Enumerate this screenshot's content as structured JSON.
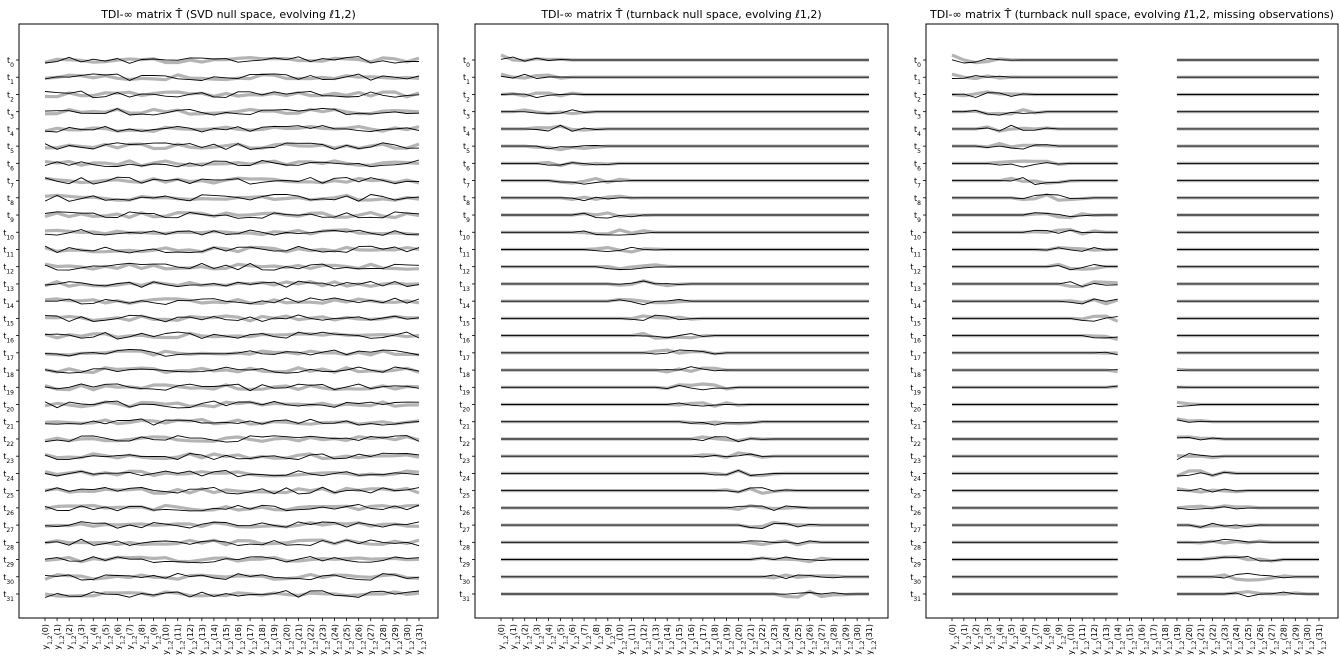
{
  "chart_data": [
    {
      "type": "line",
      "title": "TDI-∞ matrix T̂ (SVD null space, evolving ℓ1,2)",
      "row_labels": [
        "t0",
        "t1",
        "t2",
        "t3",
        "t4",
        "t5",
        "t6",
        "t7",
        "t8",
        "t9",
        "t10",
        "t11",
        "t12",
        "t13",
        "t14",
        "t15",
        "t16",
        "t17",
        "t18",
        "t19",
        "t20",
        "t21",
        "t22",
        "t23",
        "t24",
        "t25",
        "t26",
        "t27",
        "t28",
        "t29",
        "t30",
        "t31"
      ],
      "x_labels": [
        "y1,2(0)",
        "y1,2(1)",
        "y1,2(2)",
        "y1,2(3)",
        "y1,2(4)",
        "y1,2(5)",
        "y1,2(6)",
        "y1,2(7)",
        "y1,2(8)",
        "y1,2(9)",
        "y1,2(10)",
        "y1,2(11)",
        "y1,2(12)",
        "y1,2(13)",
        "y1,2(14)",
        "y1,2(15)",
        "y1,2(16)",
        "y1,2(17)",
        "y1,2(18)",
        "y1,2(19)",
        "y1,2(20)",
        "y1,2(21)",
        "y1,2(22)",
        "y1,2(23)",
        "y1,2(24)",
        "y1,2(25)",
        "y1,2(26)",
        "y1,2(27)",
        "y1,2(28)",
        "y1,2(29)",
        "y1,2(30)",
        "y1,2(31)"
      ],
      "pattern": "dense",
      "series": [
        {
          "color": "#000000"
        },
        {
          "color": "#b4b4b4"
        }
      ]
    },
    {
      "type": "line",
      "title": "TDI-∞ matrix T̂ (turnback null space, evolving ℓ1,2)",
      "row_labels": [
        "t0",
        "t1",
        "t2",
        "t3",
        "t4",
        "t5",
        "t6",
        "t7",
        "t8",
        "t9",
        "t10",
        "t11",
        "t12",
        "t13",
        "t14",
        "t15",
        "t16",
        "t17",
        "t18",
        "t19",
        "t20",
        "t21",
        "t22",
        "t23",
        "t24",
        "t25",
        "t26",
        "t27",
        "t28",
        "t29",
        "t30",
        "t31"
      ],
      "x_labels": [
        "y1,2(0)",
        "y1,2(1)",
        "y1,2(2)",
        "y1,2(3)",
        "y1,2(4)",
        "y1,2(5)",
        "y1,2(6)",
        "y1,2(7)",
        "y1,2(8)",
        "y1,2(9)",
        "y1,2(10)",
        "y1,2(11)",
        "y1,2(12)",
        "y1,2(13)",
        "y1,2(14)",
        "y1,2(15)",
        "y1,2(16)",
        "y1,2(17)",
        "y1,2(18)",
        "y1,2(19)",
        "y1,2(20)",
        "y1,2(21)",
        "y1,2(22)",
        "y1,2(23)",
        "y1,2(24)",
        "y1,2(25)",
        "y1,2(26)",
        "y1,2(27)",
        "y1,2(28)",
        "y1,2(29)",
        "y1,2(30)",
        "y1,2(31)"
      ],
      "pattern": "banded",
      "missing_columns": [],
      "series": [
        {
          "color": "#000000"
        },
        {
          "color": "#b4b4b4"
        }
      ]
    },
    {
      "type": "line",
      "title": "TDI-∞ matrix T̂ (turnback null space, evolving ℓ1,2, missing observations)",
      "row_labels": [
        "t0",
        "t1",
        "t2",
        "t3",
        "t4",
        "t5",
        "t6",
        "t7",
        "t8",
        "t9",
        "t10",
        "t11",
        "t12",
        "t13",
        "t14",
        "t15",
        "t16",
        "t17",
        "t18",
        "t19",
        "t20",
        "t21",
        "t22",
        "t23",
        "t24",
        "t25",
        "t26",
        "t27",
        "t28",
        "t29",
        "t30",
        "t31"
      ],
      "x_labels": [
        "y1,2(0)",
        "y1,2(1)",
        "y1,2(2)",
        "y1,2(3)",
        "y1,2(4)",
        "y1,2(5)",
        "y1,2(6)",
        "y1,2(7)",
        "y1,2(8)",
        "y1,2(9)",
        "y1,2(10)",
        "y1,2(11)",
        "y1,2(12)",
        "y1,2(13)",
        "y1,2(14)",
        "y1,2(15)",
        "y1,2(16)",
        "y1,2(17)",
        "y1,2(18)",
        "y1,2(19)",
        "y1,2(20)",
        "y1,2(21)",
        "y1,2(22)",
        "y1,2(23)",
        "y1,2(24)",
        "y1,2(25)",
        "y1,2(26)",
        "y1,2(27)",
        "y1,2(28)",
        "y1,2(29)",
        "y1,2(30)",
        "y1,2(31)"
      ],
      "pattern": "banded",
      "missing_columns": [
        15,
        16,
        17,
        18
      ],
      "series": [
        {
          "color": "#000000"
        },
        {
          "color": "#b4b4b4"
        }
      ]
    }
  ]
}
